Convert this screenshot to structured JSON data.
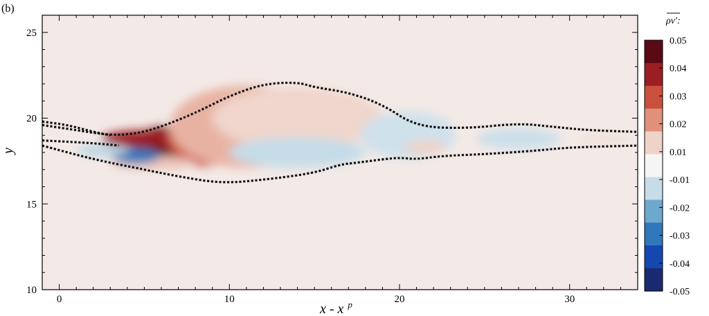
{
  "panel_label": "(b)",
  "chart_data": {
    "type": "heatmap",
    "xlabel": "x - x",
    "xlabel_superscript": "p",
    "ylabel": "y",
    "xlim": [
      -1,
      34
    ],
    "ylim": [
      10,
      26
    ],
    "x_ticks": [
      0,
      10,
      20,
      30
    ],
    "y_ticks": [
      10,
      15,
      20,
      25
    ],
    "colorbar": {
      "title": "ρv′:",
      "range": [
        -0.05,
        0.05
      ],
      "tick_values": [
        0.05,
        0.04,
        0.03,
        0.02,
        0.01,
        -0.01,
        -0.02,
        -0.03,
        -0.04,
        -0.05
      ],
      "tick_labels": [
        "0.05",
        "0.04",
        "0.03",
        "0.02",
        "0.01",
        "-0.01",
        "-0.02",
        "-0.03",
        "-0.04",
        "-0.05"
      ],
      "colors": [
        "#5a0a14",
        "#9a1e22",
        "#c8503c",
        "#e0917c",
        "#efd2c8",
        "#f5f5f5",
        "#c6dce8",
        "#6ea8cc",
        "#2f78bc",
        "#1448b0",
        "#1a2a70"
      ]
    },
    "background_value": 0.003,
    "features": [
      {
        "cx": 6.5,
        "cy": 18.6,
        "rx": 2.3,
        "ry": 0.9,
        "value": 0.05
      },
      {
        "cx": 5.0,
        "cy": 18.8,
        "rx": 2.5,
        "ry": 0.5,
        "value": 0.04
      },
      {
        "cx": 8.5,
        "cy": 18.8,
        "rx": 2.2,
        "ry": 1.6,
        "value": 0.03
      },
      {
        "cx": 11.0,
        "cy": 19.5,
        "rx": 4.5,
        "ry": 2.4,
        "value": 0.015
      },
      {
        "cx": 14.0,
        "cy": 20.0,
        "rx": 5.0,
        "ry": 1.8,
        "value": 0.009
      },
      {
        "cx": 5.5,
        "cy": 17.4,
        "rx": 2.5,
        "ry": 0.4,
        "value": 0.012
      },
      {
        "cx": 4.5,
        "cy": 17.8,
        "rx": 1.4,
        "ry": 0.45,
        "value": -0.03
      },
      {
        "cx": 2.5,
        "cy": 18.1,
        "rx": 1.5,
        "ry": 0.3,
        "value": -0.012
      },
      {
        "cx": 14.0,
        "cy": 18.0,
        "rx": 4.0,
        "ry": 0.9,
        "value": -0.01
      },
      {
        "cx": 20.5,
        "cy": 19.0,
        "rx": 2.8,
        "ry": 1.4,
        "value": -0.008
      },
      {
        "cx": 27.0,
        "cy": 18.8,
        "rx": 2.5,
        "ry": 0.6,
        "value": -0.009
      },
      {
        "cx": 21.5,
        "cy": 18.3,
        "rx": 1.2,
        "ry": 0.4,
        "value": 0.01
      },
      {
        "cx": 32.0,
        "cy": 18.8,
        "rx": 1.5,
        "ry": 0.3,
        "value": 0.006
      }
    ],
    "contours": [
      {
        "name": "upper",
        "points": [
          [
            -1,
            19.6
          ],
          [
            1,
            19.3
          ],
          [
            3,
            19.0
          ],
          [
            4.6,
            19.1
          ],
          [
            6,
            19.5
          ],
          [
            8,
            20.3
          ],
          [
            10,
            21.3
          ],
          [
            12,
            22.0
          ],
          [
            14,
            22.1
          ],
          [
            15,
            21.8
          ],
          [
            17,
            21.5
          ],
          [
            19,
            20.8
          ],
          [
            21,
            19.5
          ],
          [
            24,
            19.4
          ],
          [
            27,
            19.7
          ],
          [
            29,
            19.5
          ],
          [
            31,
            19.3
          ],
          [
            34,
            19.2
          ]
        ]
      },
      {
        "name": "lower",
        "points": [
          [
            -1,
            18.4
          ],
          [
            2,
            17.6
          ],
          [
            5,
            17.0
          ],
          [
            7,
            16.6
          ],
          [
            9.5,
            16.2
          ],
          [
            12,
            16.4
          ],
          [
            15,
            16.8
          ],
          [
            16.5,
            17.3
          ],
          [
            17.5,
            17.4
          ],
          [
            19,
            17.6
          ],
          [
            20,
            17.7
          ],
          [
            21,
            17.6
          ],
          [
            22.5,
            17.8
          ],
          [
            25,
            17.9
          ],
          [
            28,
            18.1
          ],
          [
            30,
            18.3
          ],
          [
            34,
            18.4
          ]
        ]
      },
      {
        "name": "inner",
        "points": [
          [
            -1,
            18.7
          ],
          [
            1,
            18.6
          ],
          [
            2.5,
            18.5
          ],
          [
            3.5,
            18.4
          ]
        ]
      },
      {
        "name": "top-edge",
        "points": [
          [
            -1,
            19.8
          ],
          [
            0.5,
            19.6
          ],
          [
            2,
            19.2
          ],
          [
            3,
            19.0
          ]
        ]
      }
    ]
  }
}
